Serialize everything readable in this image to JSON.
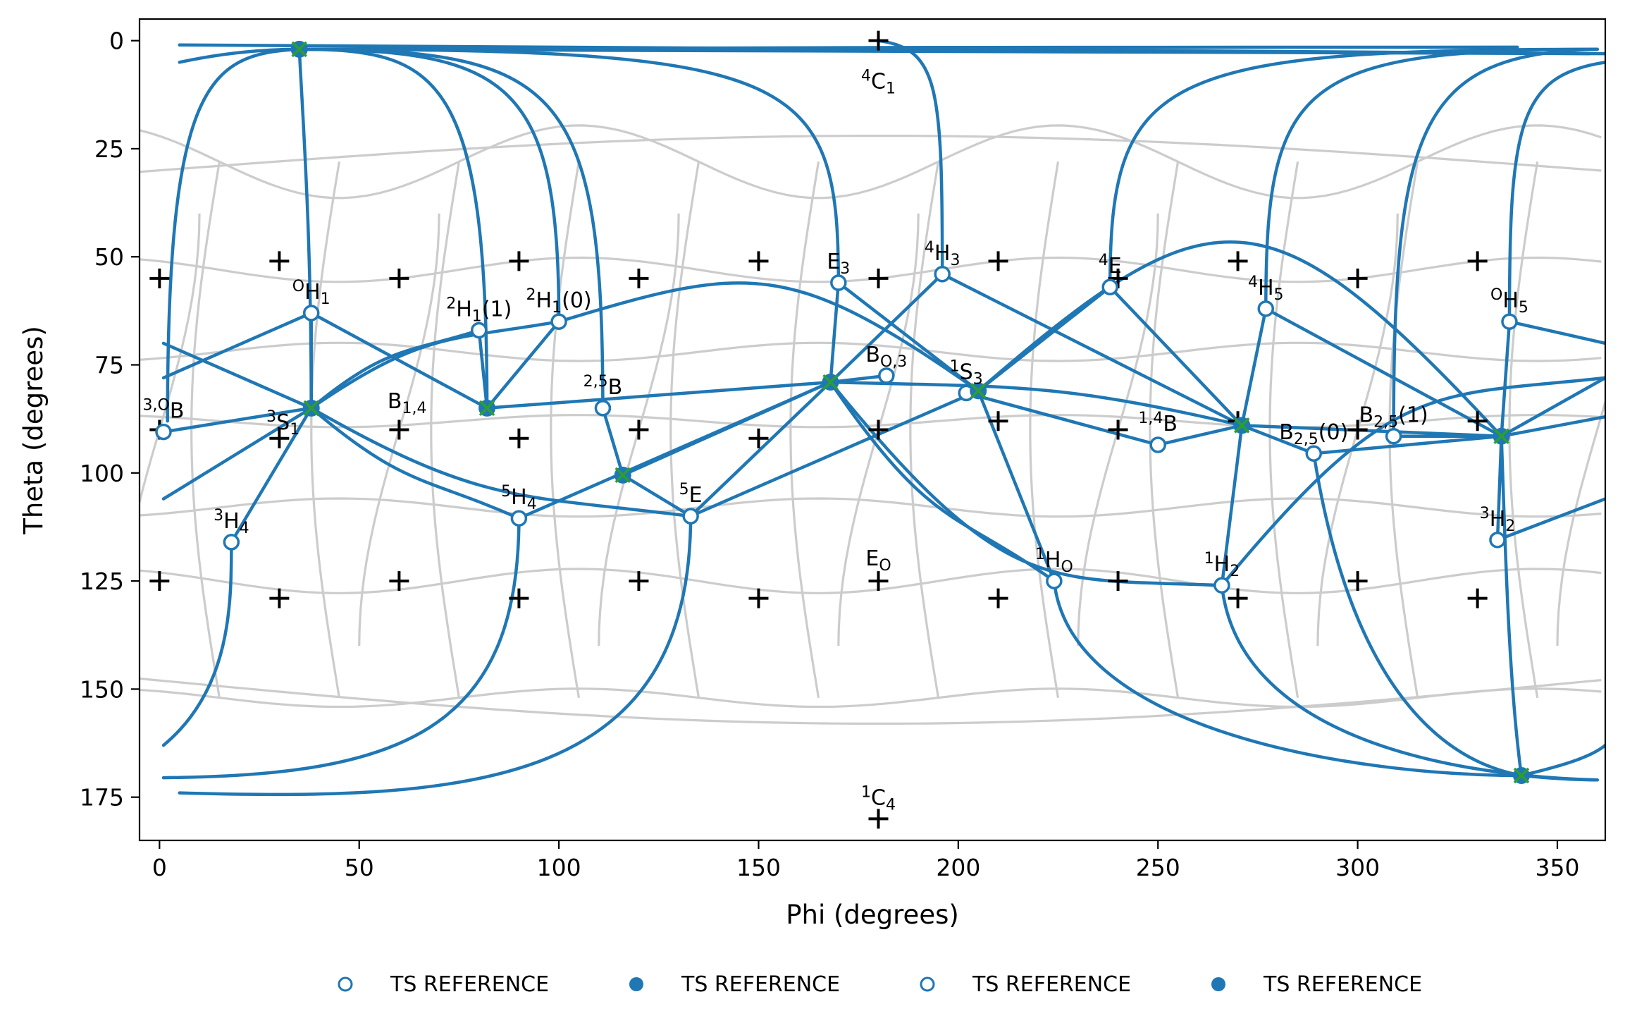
{
  "chart_data": {
    "type": "scatter",
    "title": "",
    "xlabel": "Phi (degrees)",
    "ylabel": "Theta (degrees)",
    "xlim": [
      -5,
      362
    ],
    "ylim": [
      185,
      -5
    ],
    "y_inverted": true,
    "grid": false,
    "x_ticks": [
      "0",
      "50",
      "100",
      "150",
      "200",
      "250",
      "300",
      "350"
    ],
    "y_ticks": [
      "0",
      "25",
      "50",
      "75",
      "100",
      "125",
      "150",
      "175"
    ],
    "colors": {
      "series": "#1f77b4",
      "minima_x": "#2ca02c",
      "background_lines": "#cccccc",
      "reference_plus": "#000000"
    },
    "reference_points": [
      {
        "phi": 180,
        "theta": 0,
        "label": "⁴C₁"
      },
      {
        "phi": 180,
        "theta": 180,
        "label": "¹C₄"
      },
      {
        "phi": 180,
        "theta": 125,
        "label": "E_O"
      },
      {
        "phi": 0,
        "theta": 55
      },
      {
        "phi": 30,
        "theta": 51
      },
      {
        "phi": 60,
        "theta": 55
      },
      {
        "phi": 90,
        "theta": 51
      },
      {
        "phi": 120,
        "theta": 55
      },
      {
        "phi": 150,
        "theta": 51
      },
      {
        "phi": 180,
        "theta": 55
      },
      {
        "phi": 210,
        "theta": 51
      },
      {
        "phi": 240,
        "theta": 55
      },
      {
        "phi": 270,
        "theta": 51
      },
      {
        "phi": 300,
        "theta": 55
      },
      {
        "phi": 330,
        "theta": 51
      },
      {
        "phi": 0,
        "theta": 90
      },
      {
        "phi": 30,
        "theta": 92
      },
      {
        "phi": 60,
        "theta": 90
      },
      {
        "phi": 90,
        "theta": 92
      },
      {
        "phi": 120,
        "theta": 90
      },
      {
        "phi": 150,
        "theta": 92
      },
      {
        "phi": 180,
        "theta": 90
      },
      {
        "phi": 210,
        "theta": 88
      },
      {
        "phi": 240,
        "theta": 90
      },
      {
        "phi": 270,
        "theta": 88
      },
      {
        "phi": 300,
        "theta": 90
      },
      {
        "phi": 330,
        "theta": 88
      },
      {
        "phi": 0,
        "theta": 125
      },
      {
        "phi": 30,
        "theta": 129
      },
      {
        "phi": 60,
        "theta": 125
      },
      {
        "phi": 90,
        "theta": 129
      },
      {
        "phi": 120,
        "theta": 125
      },
      {
        "phi": 150,
        "theta": 129
      },
      {
        "phi": 210,
        "theta": 129
      },
      {
        "phi": 240,
        "theta": 125
      },
      {
        "phi": 270,
        "theta": 129
      },
      {
        "phi": 300,
        "theta": 125
      },
      {
        "phi": 330,
        "theta": 129
      }
    ],
    "ts_points": [
      {
        "phi": 1,
        "theta": 90.5,
        "label": "³,ᴼB"
      },
      {
        "phi": 38,
        "theta": 63,
        "label": "ᴼH₁"
      },
      {
        "phi": 80,
        "theta": 67,
        "label": "²H₁(1)"
      },
      {
        "phi": 100,
        "theta": 65,
        "label": "²H₁(0)"
      },
      {
        "phi": 111,
        "theta": 85,
        "label": "²,⁵B"
      },
      {
        "phi": 18,
        "theta": 116,
        "label": "³H₄"
      },
      {
        "phi": 90,
        "theta": 110.5,
        "label": "⁵H₄"
      },
      {
        "phi": 133,
        "theta": 110,
        "label": "⁵E"
      },
      {
        "phi": 170,
        "theta": 56,
        "label": "E₃"
      },
      {
        "phi": 182,
        "theta": 77.5,
        "label": "B_O,3"
      },
      {
        "phi": 196,
        "theta": 54,
        "label": "⁴H₃"
      },
      {
        "phi": 202,
        "theta": 81.5,
        "label": "¹S₃"
      },
      {
        "phi": 238,
        "theta": 57,
        "label": "⁴E"
      },
      {
        "phi": 224,
        "theta": 125,
        "label": "¹H_O"
      },
      {
        "phi": 250,
        "theta": 93.5,
        "label": "¹,⁴B"
      },
      {
        "phi": 266,
        "theta": 126,
        "label": "¹H₂"
      },
      {
        "phi": 277,
        "theta": 62,
        "label": "⁴H₅"
      },
      {
        "phi": 289,
        "theta": 95.5,
        "label": "B₂,₅(0)"
      },
      {
        "phi": 309,
        "theta": 91.5,
        "label": "B₂,₅(1)"
      },
      {
        "phi": 338,
        "theta": 65,
        "label": "ᴼH₅"
      },
      {
        "phi": 335,
        "theta": 115.5,
        "label": "³H₂"
      }
    ],
    "minima_points": [
      {
        "phi": 35,
        "theta": 2,
        "label": ""
      },
      {
        "phi": 38,
        "theta": 85,
        "label": "³S₁"
      },
      {
        "phi": 82,
        "theta": 85,
        "label": ""
      },
      {
        "phi": 116,
        "theta": 100.5,
        "label": ""
      },
      {
        "phi": 168,
        "theta": 79,
        "label": ""
      },
      {
        "phi": 205,
        "theta": 81,
        "label": ""
      },
      {
        "phi": 271,
        "theta": 89,
        "label": ""
      },
      {
        "phi": 336,
        "theta": 91.5,
        "label": ""
      },
      {
        "phi": 341,
        "theta": 170,
        "label": ""
      }
    ],
    "annotations": [
      {
        "phi": 62,
        "theta": 85,
        "label": "B₁,₄"
      }
    ],
    "legend": {
      "placement": "bottom-center",
      "entries": [
        {
          "label": "TS REFERENCE",
          "marker": "open-circle"
        },
        {
          "label": "TS REFERENCE",
          "marker": "filled-circle"
        },
        {
          "label": "TS REFERENCE",
          "marker": "open-circle"
        },
        {
          "label": "TS REFERENCE",
          "marker": "filled-circle"
        }
      ]
    }
  }
}
